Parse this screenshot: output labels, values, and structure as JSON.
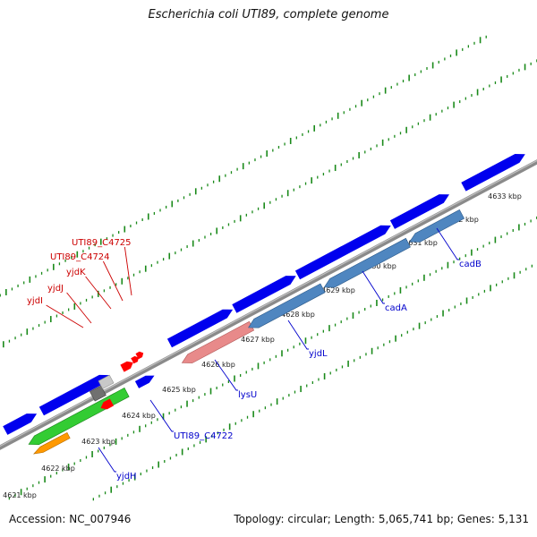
{
  "title": "Escherichia coli UTI89, complete genome",
  "footer": {
    "accession": "Accession: NC_007946",
    "summary": "Topology: circular; Length: 5,065,741 bp; Genes: 5,131"
  },
  "colors": {
    "backbone": "#8a8a8a",
    "forward_gene": "#0000ee",
    "reverse_gene": "#4f86c0",
    "pink_gene": "#e88a8a",
    "green_gene": "#33cc33",
    "orange_gene": "#ff9900",
    "rna_feature": "#ff0000",
    "ticks": "#1a8a1a",
    "label_forward": "#0000cc",
    "label_reverse": "#cc0000"
  },
  "ticks": [
    "4621 kbp",
    "4622 kbp",
    "4623 kbp",
    "4624 kbp",
    "4625 kbp",
    "4626 kbp",
    "4627 kbp",
    "4628 kbp",
    "4629 kbp",
    "4630 kbp",
    "4631 kbp",
    "4632 kbp",
    "4633 kbp"
  ],
  "labels_below": [
    "yjdH",
    "UTI89_C4722",
    "lysU",
    "yjdL",
    "cadA",
    "cadB"
  ],
  "labels_above": [
    "yjdI",
    "yjdJ",
    "yjdK",
    "UTI89_C4724",
    "UTI89_C4725"
  ]
}
